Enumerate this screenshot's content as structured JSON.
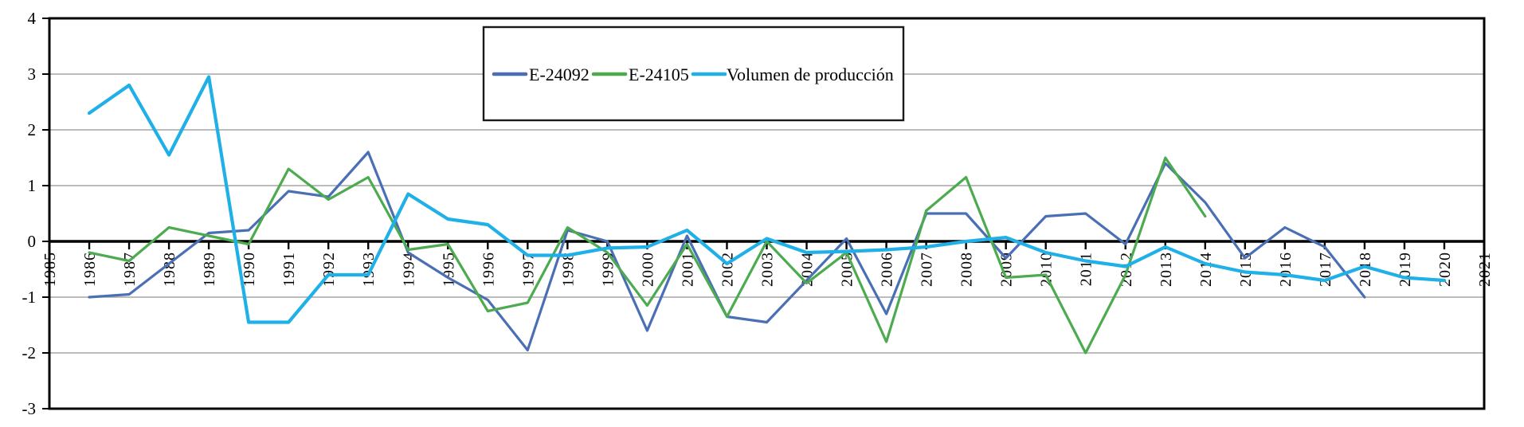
{
  "chart": {
    "background": "#ffffff",
    "grid_color": "#a6a6a6",
    "axis_color": "#000000",
    "legend": {
      "border_color": "#1a1a1a",
      "fill": "#ffffff",
      "items": [
        {
          "label": "E-24092",
          "color": "#4a6fb5"
        },
        {
          "label": "E-24105",
          "color": "#4cab4f"
        },
        {
          "label": "Volumen de producción",
          "color": "#1fb0e8"
        }
      ]
    },
    "y_axis": {
      "tick_labels": [
        "4",
        "3",
        "2",
        "1",
        "0",
        "-1",
        "-2",
        "-3"
      ],
      "min": -3,
      "max": 4
    },
    "x_axis": {
      "tick_labels": [
        "1985",
        "1986",
        "1987",
        "1988",
        "1989",
        "1990",
        "1991",
        "1992",
        "1993",
        "1994",
        "1995",
        "1996",
        "1997",
        "1998",
        "1999",
        "2000",
        "2001",
        "2002",
        "2003",
        "2004",
        "2005",
        "2006",
        "2007",
        "2008",
        "2009",
        "2010",
        "2011",
        "2012",
        "2013",
        "2014",
        "2015",
        "2016",
        "2017",
        "2018",
        "2019",
        "2020",
        "2021"
      ],
      "min": 1985,
      "max": 2021
    }
  },
  "chart_data": {
    "type": "line",
    "title": "",
    "xlabel": "",
    "ylabel": "",
    "xlim": [
      1985,
      2021
    ],
    "ylim": [
      -3,
      4
    ],
    "grid": "horizontal",
    "legend_position": "top-center",
    "series": [
      {
        "name": "E-24092",
        "color": "#4a6fb5",
        "points": [
          [
            1986,
            -1.0
          ],
          [
            1987,
            -0.95
          ],
          [
            1988,
            -0.4
          ],
          [
            1989,
            0.15
          ],
          [
            1990,
            0.2
          ],
          [
            1991,
            0.9
          ],
          [
            1992,
            0.8
          ],
          [
            1993,
            1.6
          ],
          [
            1994,
            -0.2
          ],
          [
            1995,
            -0.65
          ],
          [
            1996,
            -1.05
          ],
          [
            1997,
            -1.95
          ],
          [
            1998,
            0.2
          ],
          [
            1999,
            0.0
          ],
          [
            2000,
            -1.6
          ],
          [
            2001,
            0.1
          ],
          [
            2002,
            -1.35
          ],
          [
            2003,
            -1.45
          ],
          [
            2004,
            -0.7
          ],
          [
            2005,
            0.05
          ],
          [
            2006,
            -1.3
          ],
          [
            2007,
            0.5
          ],
          [
            2008,
            0.5
          ],
          [
            2009,
            -0.3
          ],
          [
            2010,
            0.45
          ],
          [
            2011,
            0.5
          ],
          [
            2012,
            -0.05
          ],
          [
            2013,
            1.4
          ],
          [
            2014,
            0.7
          ],
          [
            2015,
            -0.3
          ],
          [
            2016,
            0.25
          ],
          [
            2017,
            -0.1
          ],
          [
            2018,
            -1.0
          ]
        ]
      },
      {
        "name": "E-24105",
        "color": "#4cab4f",
        "points": [
          [
            1986,
            -0.2
          ],
          [
            1987,
            -0.35
          ],
          [
            1988,
            0.25
          ],
          [
            1989,
            0.1
          ],
          [
            1990,
            -0.05
          ],
          [
            1991,
            1.3
          ],
          [
            1992,
            0.75
          ],
          [
            1993,
            1.15
          ],
          [
            1994,
            -0.15
          ],
          [
            1995,
            -0.05
          ],
          [
            1996,
            -1.25
          ],
          [
            1997,
            -1.1
          ],
          [
            1998,
            0.25
          ],
          [
            1999,
            -0.2
          ],
          [
            2000,
            -1.15
          ],
          [
            2001,
            -0.05
          ],
          [
            2002,
            -1.35
          ],
          [
            2003,
            0.0
          ],
          [
            2004,
            -0.75
          ],
          [
            2005,
            -0.2
          ],
          [
            2006,
            -1.8
          ],
          [
            2007,
            0.55
          ],
          [
            2008,
            1.15
          ],
          [
            2009,
            -0.65
          ],
          [
            2010,
            -0.6
          ],
          [
            2011,
            -2.0
          ],
          [
            2012,
            -0.6
          ],
          [
            2013,
            1.5
          ],
          [
            2014,
            0.45
          ]
        ]
      },
      {
        "name": "Volumen de producción",
        "color": "#1fb0e8",
        "points": [
          [
            1986,
            2.3
          ],
          [
            1987,
            2.8
          ],
          [
            1988,
            1.55
          ],
          [
            1989,
            2.95
          ],
          [
            1990,
            -1.45
          ],
          [
            1991,
            -1.45
          ],
          [
            1992,
            -0.6
          ],
          [
            1993,
            -0.6
          ],
          [
            1994,
            0.85
          ],
          [
            1995,
            0.4
          ],
          [
            1996,
            0.3
          ],
          [
            1997,
            -0.25
          ],
          [
            1998,
            -0.25
          ],
          [
            1999,
            -0.12
          ],
          [
            2000,
            -0.1
          ],
          [
            2001,
            0.2
          ],
          [
            2002,
            -0.4
          ],
          [
            2003,
            0.05
          ],
          [
            2004,
            -0.2
          ],
          [
            2005,
            -0.18
          ],
          [
            2006,
            -0.15
          ],
          [
            2007,
            -0.1
          ],
          [
            2008,
            0.0
          ],
          [
            2009,
            0.07
          ],
          [
            2010,
            -0.2
          ],
          [
            2011,
            -0.35
          ],
          [
            2012,
            -0.45
          ],
          [
            2013,
            -0.1
          ],
          [
            2014,
            -0.4
          ],
          [
            2015,
            -0.55
          ],
          [
            2016,
            -0.6
          ],
          [
            2017,
            -0.7
          ],
          [
            2018,
            -0.45
          ],
          [
            2019,
            -0.65
          ],
          [
            2020,
            -0.7
          ]
        ]
      }
    ]
  }
}
